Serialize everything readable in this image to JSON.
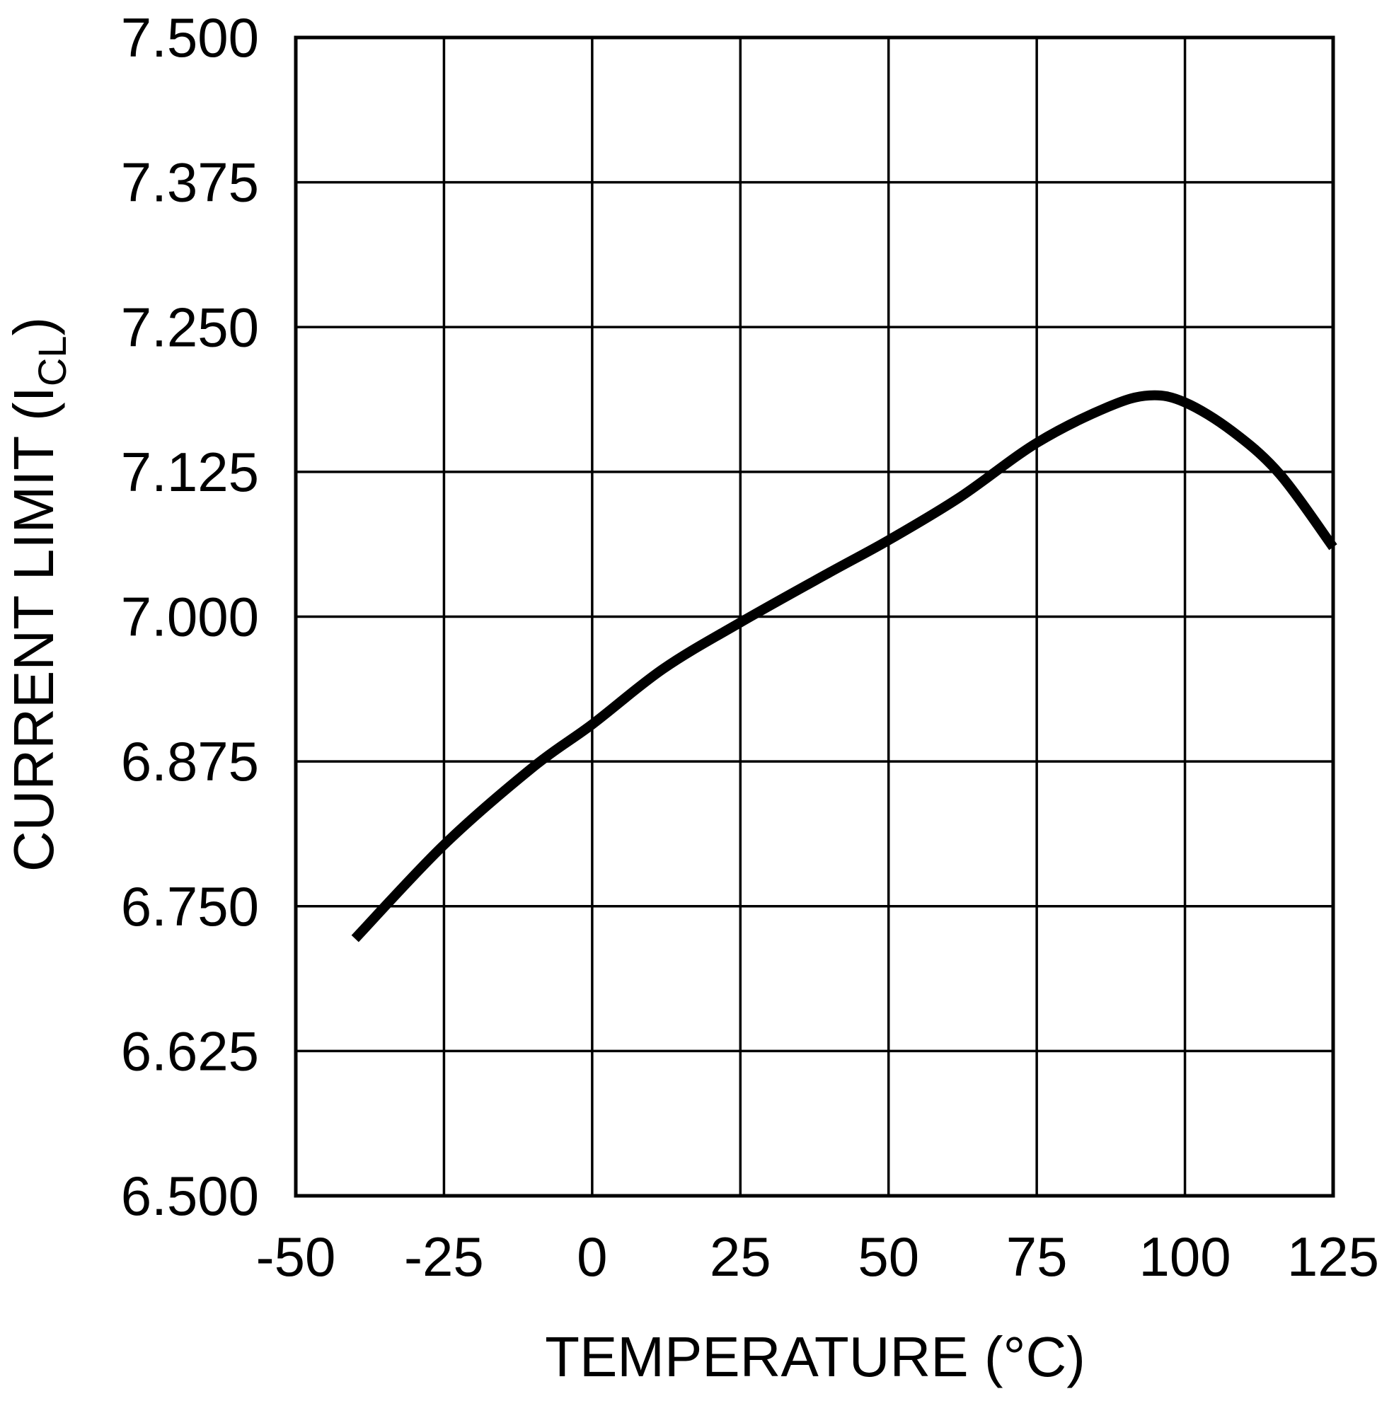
{
  "chart_data": {
    "type": "line",
    "title": "",
    "xlabel": "TEMPERATURE (°C)",
    "ylabel_main": "CURRENT LIMIT (I",
    "ylabel_sub": "CL",
    "ylabel_end": ")",
    "xlim": [
      -50,
      125
    ],
    "ylim": [
      6.5,
      7.5
    ],
    "xticks": [
      "-50",
      "-25",
      "0",
      "25",
      "50",
      "75",
      "100",
      "125"
    ],
    "yticks": [
      "6.500",
      "6.625",
      "6.750",
      "6.875",
      "7.000",
      "7.125",
      "7.250",
      "7.375",
      "7.500"
    ],
    "grid": true,
    "series": [
      {
        "name": "I_CL",
        "color": "#000000",
        "x": [
          -40,
          -25,
          -10,
          0,
          12,
          25,
          40,
          50,
          62,
          75,
          87,
          94,
          100,
          108,
          116,
          125
        ],
        "y": [
          6.722,
          6.803,
          6.87,
          6.907,
          6.955,
          6.995,
          7.038,
          7.066,
          7.103,
          7.15,
          7.181,
          7.191,
          7.185,
          7.16,
          7.123,
          7.06
        ]
      }
    ]
  }
}
